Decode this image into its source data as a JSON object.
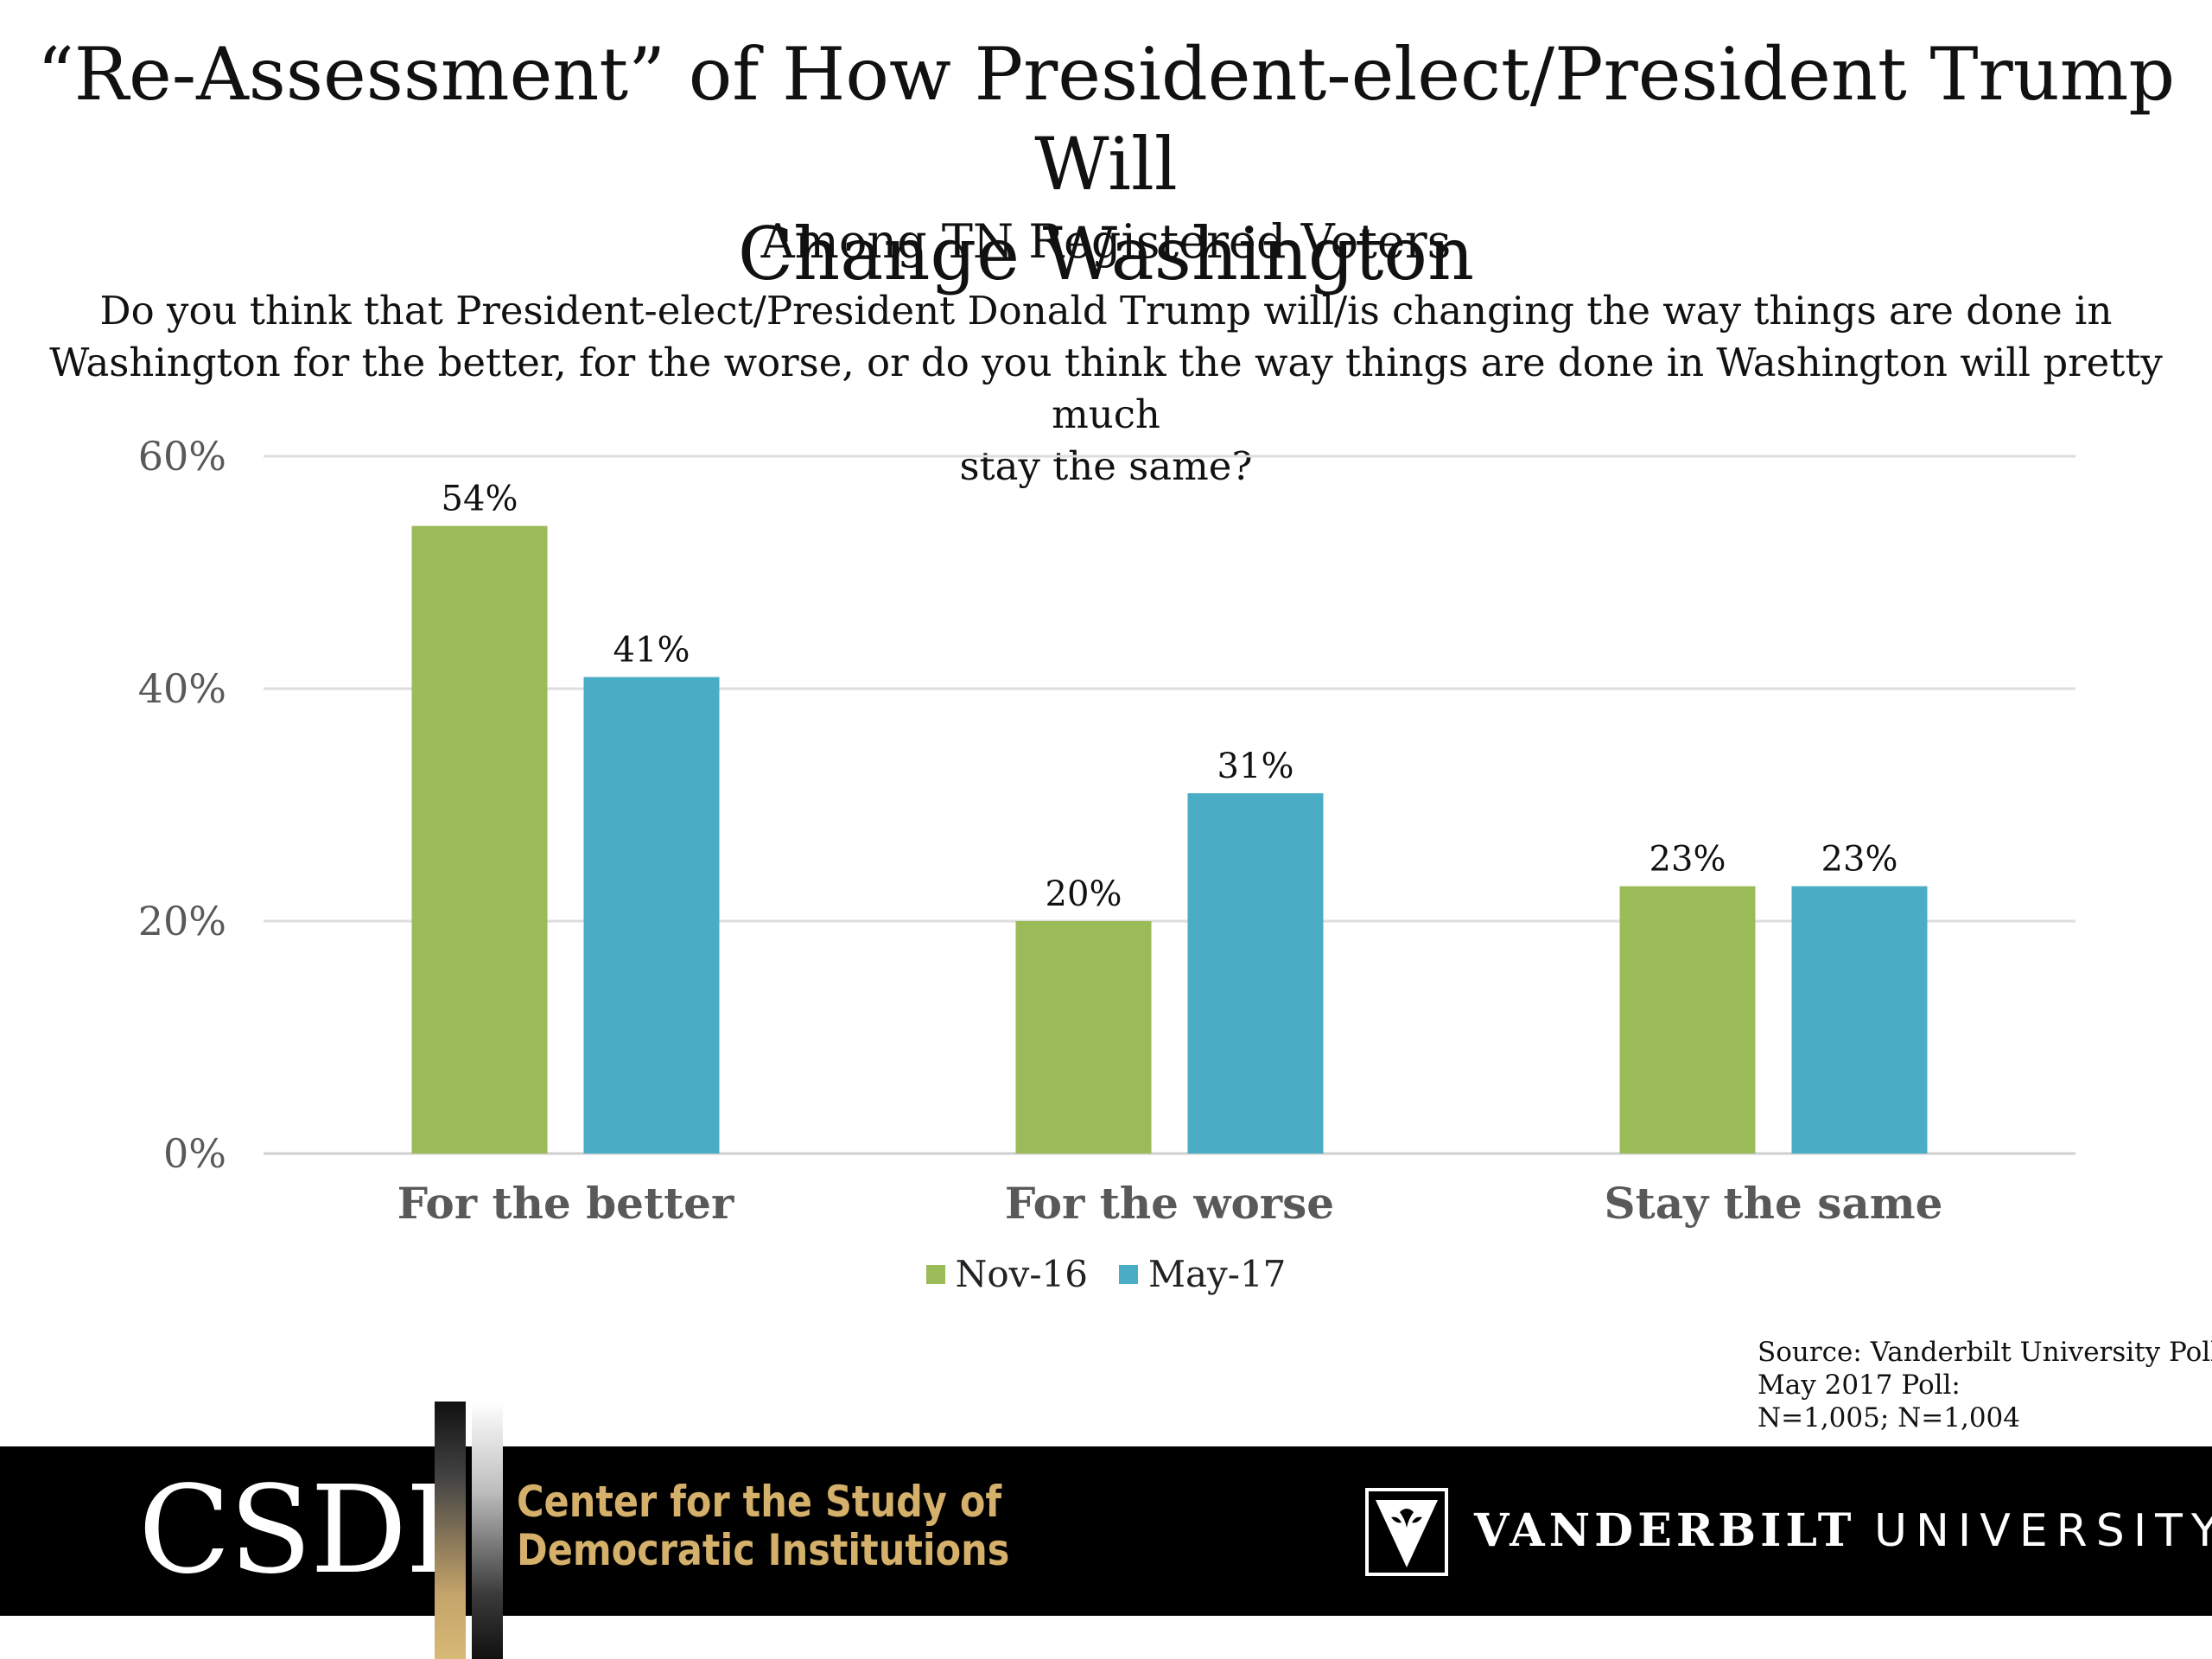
{
  "title_line1": "“Re-Assessment” of How President-elect/President Trump Will",
  "title_line2": "Change Washington",
  "subtitle": "Among TN Registered Voters",
  "question_line1": "Do you think that President-elect/President Donald Trump will/is changing the way things are done in",
  "question_line2": "Washington for the better, for the worse, or do you think the way things are done in Washington will pretty much",
  "question_line3": "stay the same?",
  "chart_data": {
    "type": "bar",
    "categories": [
      "For the better",
      "For the worse",
      "Stay the same"
    ],
    "series": [
      {
        "name": "Nov-16",
        "color": "#9bbb59",
        "values": [
          54,
          20,
          23
        ]
      },
      {
        "name": "May-17",
        "color": "#4bacc6",
        "values": [
          41,
          31,
          23
        ]
      }
    ],
    "value_format": "%",
    "ylim": [
      0,
      60
    ],
    "yticks": [
      0,
      20,
      40,
      60
    ],
    "ytick_labels": [
      "0%",
      "20%",
      "40%",
      "60%"
    ],
    "grid": true,
    "legend_position": "bottom"
  },
  "source": {
    "line1": "Source: Vanderbilt University Polls",
    "line2": "May 2017 Poll:",
    "line3": "N=1,005; N=1,004"
  },
  "footer": {
    "csdi_abbr": "CSDI",
    "csdi_line1": "Center for the Study of",
    "csdi_line2": "Democratic Institutions",
    "vu_word1": "VANDERBILT",
    "vu_word2": "UNIVERSITY"
  }
}
